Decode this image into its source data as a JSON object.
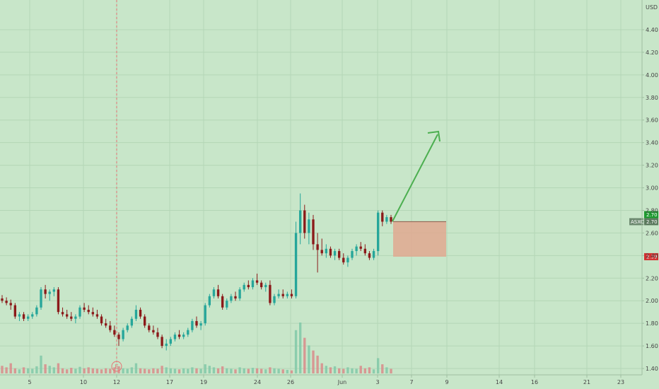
{
  "chart_data": {
    "type": "candlestick",
    "symbol": "ASXC",
    "currency": "USD",
    "ylim": [
      1.34,
      4.6
    ],
    "price_ticks": [
      "4.40",
      "4.20",
      "4.00",
      "3.80",
      "3.60",
      "3.40",
      "3.20",
      "3.00",
      "2.80",
      "2.60",
      "2.40",
      "2.20",
      "2.00",
      "1.80",
      "1.60",
      "1.40"
    ],
    "date_ticks": [
      "5",
      "10",
      "12",
      "17",
      "19",
      "24",
      "26",
      "Jun",
      "3",
      "7",
      "9",
      "14",
      "16",
      "21",
      "23"
    ],
    "current_price": "2.70",
    "target_price": "2.70",
    "stop_price": "2.39",
    "event_marker": "E",
    "colors": {
      "background": "#c8e6c9",
      "up": "#26a69a",
      "down": "#8b1a1a",
      "grid": "#b4d6b6",
      "target": "#1e9a30",
      "stop": "#d32f2f",
      "zone": "#e0a890",
      "arrow": "#4caf50",
      "event": "#e57373"
    },
    "candles": [
      [
        2.02,
        2.05,
        1.98,
        2.0
      ],
      [
        2.0,
        2.03,
        1.96,
        1.98
      ],
      [
        1.98,
        2.01,
        1.92,
        1.96
      ],
      [
        1.96,
        1.98,
        1.84,
        1.86
      ],
      [
        1.86,
        1.9,
        1.82,
        1.88
      ],
      [
        1.88,
        1.9,
        1.82,
        1.84
      ],
      [
        1.84,
        1.88,
        1.82,
        1.86
      ],
      [
        1.86,
        1.9,
        1.84,
        1.88
      ],
      [
        1.88,
        1.96,
        1.86,
        1.94
      ],
      [
        1.94,
        2.12,
        1.92,
        2.1
      ],
      [
        2.1,
        2.14,
        2.02,
        2.06
      ],
      [
        2.06,
        2.1,
        2.0,
        2.08
      ],
      [
        2.08,
        2.12,
        2.04,
        2.1
      ],
      [
        2.1,
        2.12,
        1.88,
        1.9
      ],
      [
        1.9,
        1.94,
        1.86,
        1.88
      ],
      [
        1.88,
        1.92,
        1.84,
        1.86
      ],
      [
        1.86,
        1.9,
        1.82,
        1.84
      ],
      [
        1.84,
        1.88,
        1.8,
        1.86
      ],
      [
        1.86,
        1.96,
        1.84,
        1.94
      ],
      [
        1.94,
        1.98,
        1.9,
        1.92
      ],
      [
        1.92,
        1.96,
        1.88,
        1.9
      ],
      [
        1.9,
        1.94,
        1.86,
        1.88
      ],
      [
        1.88,
        1.92,
        1.84,
        1.86
      ],
      [
        1.86,
        1.88,
        1.78,
        1.8
      ],
      [
        1.8,
        1.84,
        1.76,
        1.78
      ],
      [
        1.78,
        1.82,
        1.72,
        1.74
      ],
      [
        1.74,
        1.78,
        1.68,
        1.7
      ],
      [
        1.7,
        1.72,
        1.6,
        1.66
      ],
      [
        1.66,
        1.76,
        1.64,
        1.74
      ],
      [
        1.74,
        1.8,
        1.72,
        1.78
      ],
      [
        1.78,
        1.86,
        1.76,
        1.84
      ],
      [
        1.84,
        1.96,
        1.82,
        1.92
      ],
      [
        1.92,
        1.94,
        1.84,
        1.86
      ],
      [
        1.86,
        1.88,
        1.76,
        1.78
      ],
      [
        1.78,
        1.8,
        1.72,
        1.74
      ],
      [
        1.74,
        1.78,
        1.7,
        1.72
      ],
      [
        1.72,
        1.76,
        1.66,
        1.68
      ],
      [
        1.68,
        1.7,
        1.58,
        1.6
      ],
      [
        1.6,
        1.66,
        1.56,
        1.62
      ],
      [
        1.62,
        1.68,
        1.6,
        1.66
      ],
      [
        1.66,
        1.72,
        1.64,
        1.7
      ],
      [
        1.7,
        1.74,
        1.66,
        1.68
      ],
      [
        1.68,
        1.72,
        1.66,
        1.7
      ],
      [
        1.7,
        1.76,
        1.68,
        1.74
      ],
      [
        1.74,
        1.84,
        1.72,
        1.82
      ],
      [
        1.82,
        1.86,
        1.76,
        1.78
      ],
      [
        1.78,
        1.82,
        1.74,
        1.8
      ],
      [
        1.8,
        1.98,
        1.78,
        1.96
      ],
      [
        1.96,
        2.06,
        1.94,
        2.04
      ],
      [
        2.04,
        2.12,
        2.02,
        2.1
      ],
      [
        2.1,
        2.14,
        2.02,
        2.04
      ],
      [
        2.04,
        2.06,
        1.92,
        1.94
      ],
      [
        1.94,
        2.02,
        1.92,
        2.0
      ],
      [
        2.0,
        2.06,
        1.98,
        2.04
      ],
      [
        2.04,
        2.08,
        2.0,
        2.02
      ],
      [
        2.02,
        2.12,
        2.0,
        2.1
      ],
      [
        2.1,
        2.16,
        2.08,
        2.14
      ],
      [
        2.14,
        2.18,
        2.1,
        2.12
      ],
      [
        2.12,
        2.2,
        2.1,
        2.18
      ],
      [
        2.18,
        2.24,
        2.14,
        2.16
      ],
      [
        2.16,
        2.18,
        2.1,
        2.12
      ],
      [
        2.12,
        2.16,
        2.08,
        2.14
      ],
      [
        2.14,
        2.18,
        1.96,
        1.98
      ],
      [
        1.98,
        2.06,
        1.96,
        2.04
      ],
      [
        2.04,
        2.1,
        2.02,
        2.06
      ],
      [
        2.06,
        2.1,
        2.02,
        2.04
      ],
      [
        2.04,
        2.08,
        2.02,
        2.06
      ],
      [
        2.06,
        2.1,
        2.02,
        2.04
      ],
      [
        2.04,
        2.7,
        2.02,
        2.6
      ],
      [
        2.6,
        2.95,
        2.5,
        2.8
      ],
      [
        2.8,
        2.85,
        2.55,
        2.6
      ],
      [
        2.6,
        2.78,
        2.5,
        2.72
      ],
      [
        2.72,
        2.76,
        2.45,
        2.5
      ],
      [
        2.5,
        2.6,
        2.25,
        2.45
      ],
      [
        2.45,
        2.55,
        2.4,
        2.42
      ],
      [
        2.42,
        2.5,
        2.38,
        2.46
      ],
      [
        2.46,
        2.48,
        2.38,
        2.4
      ],
      [
        2.4,
        2.46,
        2.36,
        2.44
      ],
      [
        2.44,
        2.46,
        2.36,
        2.38
      ],
      [
        2.38,
        2.42,
        2.32,
        2.34
      ],
      [
        2.34,
        2.4,
        2.3,
        2.38
      ],
      [
        2.38,
        2.46,
        2.36,
        2.44
      ],
      [
        2.44,
        2.5,
        2.4,
        2.48
      ],
      [
        2.48,
        2.52,
        2.44,
        2.46
      ],
      [
        2.46,
        2.5,
        2.4,
        2.42
      ],
      [
        2.42,
        2.44,
        2.36,
        2.38
      ],
      [
        2.38,
        2.46,
        2.36,
        2.44
      ],
      [
        2.44,
        2.8,
        2.4,
        2.78
      ],
      [
        2.78,
        2.8,
        2.66,
        2.7
      ],
      [
        2.7,
        2.76,
        2.68,
        2.74
      ],
      [
        2.74,
        2.76,
        2.68,
        2.7
      ]
    ],
    "volumes": [
      0.15,
      0.12,
      0.2,
      0.1,
      0.08,
      0.12,
      0.1,
      0.09,
      0.14,
      0.35,
      0.18,
      0.15,
      0.12,
      0.2,
      0.1,
      0.08,
      0.11,
      0.09,
      0.13,
      0.1,
      0.12,
      0.1,
      0.09,
      0.08,
      0.1,
      0.09,
      0.12,
      0.14,
      0.1,
      0.09,
      0.12,
      0.2,
      0.1,
      0.09,
      0.08,
      0.1,
      0.09,
      0.15,
      0.12,
      0.1,
      0.09,
      0.08,
      0.1,
      0.09,
      0.12,
      0.1,
      0.09,
      0.18,
      0.15,
      0.12,
      0.1,
      0.14,
      0.1,
      0.09,
      0.08,
      0.12,
      0.1,
      0.09,
      0.11,
      0.1,
      0.09,
      0.08,
      0.12,
      0.1,
      0.09,
      0.08,
      0.07,
      0.06,
      0.85,
      1.0,
      0.7,
      0.55,
      0.45,
      0.35,
      0.2,
      0.15,
      0.12,
      0.14,
      0.1,
      0.09,
      0.12,
      0.1,
      0.09,
      0.15,
      0.1,
      0.12,
      0.08,
      0.3,
      0.18,
      0.12,
      0.09
    ]
  }
}
